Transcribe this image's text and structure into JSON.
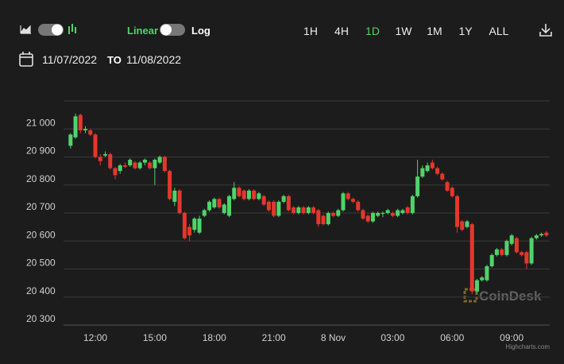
{
  "controls": {
    "scale_linear": "Linear",
    "scale_log": "Log",
    "ranges": [
      "1H",
      "4H",
      "1D",
      "1W",
      "1M",
      "1Y",
      "ALL"
    ],
    "date_from": "11/07/2022",
    "date_separator": "TO",
    "date_to": "11/08/2022"
  },
  "watermark": "CoinDesk",
  "credit": "Highcharts.com",
  "chart_data": {
    "type": "candlestick",
    "up_color": "#4fd36a",
    "down_color": "#e5372c",
    "categories": [
      null,
      null,
      null,
      null,
      null,
      "12:00",
      null,
      null,
      null,
      null,
      null,
      null,
      null,
      null,
      null,
      null,
      null,
      "15:00",
      null,
      null,
      null,
      null,
      null,
      null,
      null,
      null,
      null,
      null,
      null,
      "18:00",
      null,
      null,
      null,
      null,
      null,
      null,
      null,
      null,
      null,
      null,
      null,
      "21:00",
      null,
      null,
      null,
      null,
      null,
      null,
      null,
      null,
      null,
      null,
      null,
      "8 Nov",
      null,
      null,
      null,
      null,
      null,
      null,
      null,
      null,
      null,
      null,
      null,
      "03:00",
      null,
      null,
      null,
      null,
      null,
      null,
      null,
      null,
      null,
      null,
      null,
      "06:00",
      null,
      null,
      null,
      null,
      null,
      null,
      null,
      null,
      null,
      null,
      null,
      "09:00",
      null,
      null,
      null,
      null,
      null,
      null,
      null
    ],
    "open": [
      20940,
      20970,
      21050,
      20995,
      20995,
      20980,
      20900,
      20905,
      20910,
      20860,
      20850,
      20870,
      20870,
      20880,
      20860,
      20880,
      20880,
      20860,
      20880,
      20900,
      20850,
      20740,
      20780,
      20700,
      20650,
      20640,
      20630,
      20690,
      20710,
      20720,
      20750,
      20700,
      20690,
      20750,
      20790,
      20780,
      20750,
      20780,
      20750,
      20760,
      20740,
      20740,
      20690,
      20740,
      20760,
      20720,
      20700,
      20720,
      20700,
      20720,
      20710,
      20690,
      20660,
      20700,
      20690,
      20710,
      20770,
      20750,
      20740,
      20710,
      20690,
      20670,
      20690,
      20700,
      20700,
      20700,
      20690,
      20700,
      20720,
      20700,
      20760,
      20830,
      20850,
      20880,
      20860,
      20840,
      20810,
      20790,
      20760,
      20670,
      20650,
      20660,
      20420,
      20460,
      20460,
      20510,
      20550,
      20570,
      20550,
      20590,
      20610,
      20560,
      20560,
      20520,
      20610,
      20620,
      20630
    ],
    "high": [
      20985,
      21055,
      21055,
      21010,
      21000,
      20985,
      20910,
      20920,
      20915,
      20865,
      20875,
      20880,
      20895,
      20885,
      20885,
      20895,
      20885,
      20895,
      20905,
      20905,
      20855,
      20790,
      20785,
      20705,
      20660,
      20685,
      20690,
      20715,
      20745,
      20755,
      20755,
      20735,
      20765,
      20810,
      20795,
      20785,
      20785,
      20785,
      20775,
      20765,
      20745,
      20745,
      20745,
      20765,
      20765,
      20725,
      20725,
      20725,
      20725,
      20725,
      20715,
      20695,
      20705,
      20705,
      20715,
      20775,
      20775,
      20755,
      20745,
      20715,
      20695,
      20705,
      20705,
      20705,
      20715,
      20705,
      20715,
      20715,
      20725,
      20765,
      20890,
      20870,
      20880,
      20890,
      20865,
      20845,
      20815,
      20795,
      20765,
      20675,
      20675,
      20665,
      20465,
      20475,
      20515,
      20555,
      20575,
      20575,
      20605,
      20625,
      20615,
      20565,
      20565,
      20615,
      20625,
      20630,
      20635
    ],
    "low": [
      20930,
      20965,
      20985,
      20985,
      20975,
      20895,
      20870,
      20900,
      20855,
      20820,
      20840,
      20860,
      20865,
      20855,
      20855,
      20870,
      20855,
      20800,
      20875,
      20845,
      20745,
      20725,
      20695,
      20605,
      20600,
      20630,
      20625,
      20685,
      20705,
      20715,
      20715,
      20695,
      20685,
      20745,
      20755,
      20745,
      20745,
      20745,
      20745,
      20725,
      20705,
      20685,
      20685,
      20735,
      20705,
      20695,
      20695,
      20695,
      20695,
      20695,
      20650,
      20655,
      20655,
      20685,
      20685,
      20705,
      20745,
      20735,
      20705,
      20675,
      20665,
      20665,
      20685,
      20685,
      20695,
      20685,
      20685,
      20695,
      20695,
      20695,
      20755,
      20825,
      20845,
      20855,
      20835,
      20815,
      20775,
      20755,
      20630,
      20635,
      20645,
      20410,
      20415,
      20455,
      20455,
      20505,
      20545,
      20545,
      20545,
      20585,
      20555,
      20545,
      20500,
      20515,
      20605,
      20615,
      20615
    ],
    "close": [
      20980,
      21045,
      20995,
      21000,
      20980,
      20900,
      20885,
      20910,
      20860,
      20835,
      20870,
      20865,
      20890,
      20860,
      20880,
      20890,
      20860,
      20890,
      20900,
      20850,
      20750,
      20780,
      20700,
      20610,
      20620,
      20680,
      20680,
      20710,
      20740,
      20750,
      20720,
      20730,
      20760,
      20790,
      20760,
      20750,
      20780,
      20750,
      20770,
      20730,
      20710,
      20690,
      20740,
      20760,
      20710,
      20700,
      20720,
      20700,
      20720,
      20700,
      20660,
      20660,
      20700,
      20690,
      20710,
      20770,
      20750,
      20740,
      20710,
      20680,
      20670,
      20700,
      20700,
      20700,
      20710,
      20690,
      20710,
      20710,
      20700,
      20760,
      20830,
      20860,
      20870,
      20860,
      20840,
      20820,
      20780,
      20760,
      20650,
      20640,
      20670,
      20420,
      20460,
      20470,
      20510,
      20550,
      20570,
      20550,
      20600,
      20620,
      20560,
      20550,
      20520,
      20610,
      20620,
      20625,
      20620
    ],
    "ylim": [
      20300,
      21100
    ],
    "yticks": [
      {
        "value": 20300,
        "label": "20 300"
      },
      {
        "value": 20400,
        "label": "20 400"
      },
      {
        "value": 20500,
        "label": "20 500"
      },
      {
        "value": 20600,
        "label": "20 600"
      },
      {
        "value": 20700,
        "label": "20 700"
      },
      {
        "value": 20800,
        "label": "20 800"
      },
      {
        "value": 20900,
        "label": "20 900"
      },
      {
        "value": 21000,
        "label": "21 000"
      }
    ],
    "grid": true
  }
}
